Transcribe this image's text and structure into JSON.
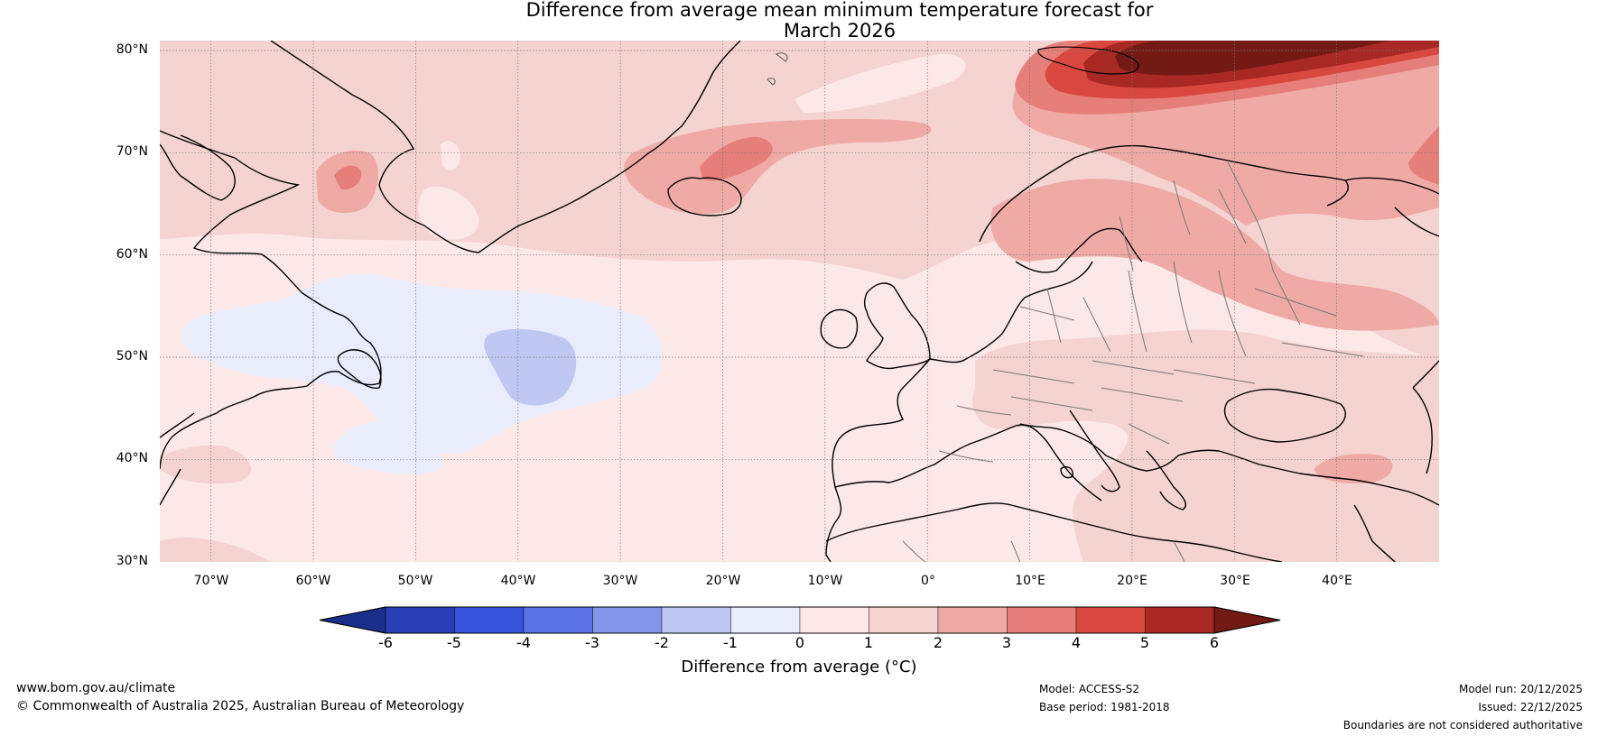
{
  "title": {
    "line1": "Difference from average mean minimum temperature forecast for",
    "line2": "March 2026"
  },
  "map": {
    "lat_labels": [
      "80°N",
      "70°N",
      "60°N",
      "50°N",
      "40°N",
      "30°N"
    ],
    "lon_labels": [
      "70°W",
      "60°W",
      "50°W",
      "40°W",
      "30°W",
      "20°W",
      "10°W",
      "0°",
      "10°E",
      "20°E",
      "30°E",
      "40°E"
    ],
    "lat_range": [
      30,
      80
    ],
    "lon_range": [
      -75,
      50
    ]
  },
  "colorbar": {
    "title": "Difference from average (°C)",
    "ticks": [
      "-6",
      "-5",
      "-4",
      "-3",
      "-2",
      "-1",
      "0",
      "1",
      "2",
      "3",
      "4",
      "5",
      "6"
    ],
    "colors": [
      "#1a2e8c",
      "#2a3eb5",
      "#3553db",
      "#5b72e6",
      "#8396ea",
      "#bfc8f2",
      "#e8ecfb",
      "#fce8e6",
      "#f5d3d0",
      "#efaaa6",
      "#e67f79",
      "#d9483f",
      "#a82824",
      "#741a15"
    ]
  },
  "footer": {
    "website": "www.bom.gov.au/climate",
    "copyright": "© Commonwealth of Australia 2025, Australian Bureau of Meteorology",
    "model": "Model: ACCESS-S2",
    "base_period": "Base period: 1981-2018",
    "model_run": "Model run: 20/12/2025",
    "issued": "Issued: 22/12/2025",
    "disclaimer": "Boundaries are not considered authoritative"
  }
}
